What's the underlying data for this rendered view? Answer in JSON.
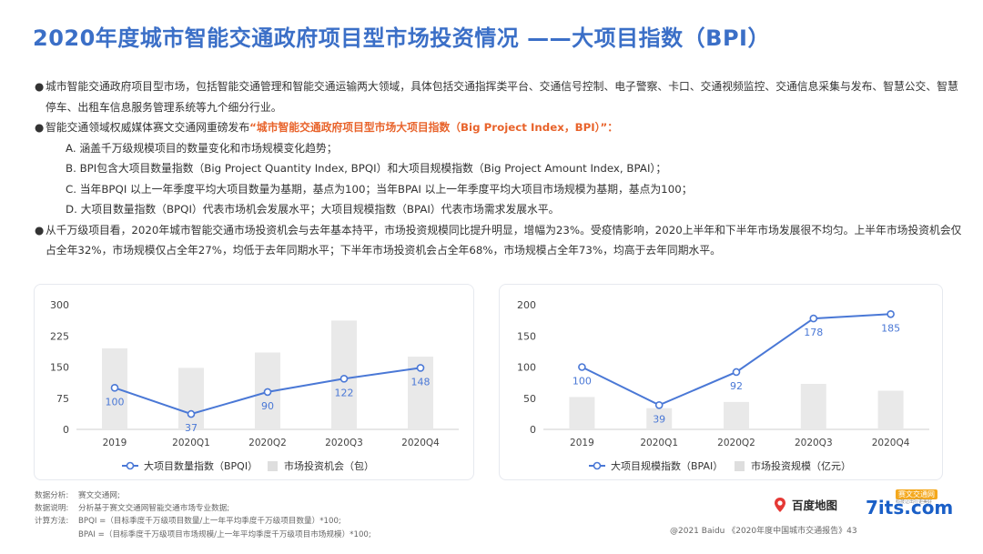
{
  "title": "2020年度城市智能交通政府项目型市场投资情况 ——大项目指数（BPI）",
  "bullets": {
    "b1": "城市智能交通政府项目型市场，包括智能交通管理和智能交通运输两大领域，具体包括交通指挥类平台、交通信号控制、电子警察、卡口、交通视频监控、交通信息采集与发布、智慧公交、智慧停车、出租车信息服务管理系统等九个细分行业。",
    "b2_prefix": "智能交通领域权威媒体赛文交通网重磅发布",
    "b2_highlight": "“城市智能交通政府项目型市场大项目指数（Big Project Index，BPI）”：",
    "subs": [
      "A.  涵盖千万级规模项目的数量变化和市场规模变化趋势；",
      "B.  BPI包含大项目数量指数（Big Project Quantity Index, BPQI）和大项目规模指数（Big Project Amount Index, BPAI）；",
      "C.  当年BPQI 以上一年季度平均大项目数量为基期，基点为100；当年BPAI 以上一年季度平均大项目市场规模为基期，基点为100；",
      "D.  大项目数量指数（BPQI）代表市场机会发展水平；大项目规模指数（BPAI）代表市场需求发展水平。"
    ],
    "b3": "从千万级项目看，2020年城市智能交通市场投资机会与去年基本持平，市场投资规模同比提升明显，增幅为23%。受疫情影响，2020上半年和下半年市场发展很不均匀。上半年市场投资机会仅占全年32%，市场规模仅占全年27%，均低于去年同期水平；下半年市场投资机会占全年68%，市场规模占全年73%，均高于去年同期水平。"
  },
  "chart_data": [
    {
      "type": "bar+line",
      "categories": [
        "2019",
        "2020Q1",
        "2020Q2",
        "2020Q3",
        "2020Q4"
      ],
      "yticks": [
        0,
        75,
        150,
        225,
        300
      ],
      "ylim": [
        0,
        300
      ],
      "bar_series": {
        "name": "市场投资机会（包）",
        "values": [
          195,
          148,
          185,
          262,
          175
        ],
        "color": "#e9e9e9"
      },
      "line_series": {
        "name": "大项目数量指数（BPQI）",
        "values": [
          100,
          37,
          90,
          122,
          148
        ],
        "color": "#4a78d6"
      },
      "legend": "bottom"
    },
    {
      "type": "bar+line",
      "categories": [
        "2019",
        "2020Q1",
        "2020Q2",
        "2020Q3",
        "2020Q4"
      ],
      "yticks": [
        0,
        50,
        100,
        150,
        200
      ],
      "ylim": [
        0,
        200
      ],
      "bar_series": {
        "name": "市场投资规模（亿元）",
        "values": [
          52,
          34,
          44,
          73,
          62
        ],
        "color": "#e9e9e9"
      },
      "line_series": {
        "name": "大项目规模指数（BPAI）",
        "values": [
          100,
          39,
          92,
          178,
          185
        ],
        "color": "#4a78d6"
      },
      "legend": "bottom"
    }
  ],
  "notes": [
    {
      "k": "数据分析:",
      "v": "赛文交通网;"
    },
    {
      "k": "数据说明:",
      "v": "分析基于赛文交通网智能交通市场专业数据;"
    },
    {
      "k": "计算方法:",
      "v": "BPQI =（目标季度千万级项目数量/上一年平均季度千万级项目数量）*100;"
    },
    {
      "k": "",
      "v": "BPAI =（目标季度千万级项目市场规模/上一年平均季度千万级项目市场规模）*100;"
    }
  ],
  "logos": {
    "baidu": "百度地图",
    "sevenits": "7its.com",
    "sevenits_badge": "赛文交通网",
    "sevenits_slogan": "科技让出行更美好"
  },
  "footer": "@2021 Baidu 《2020年度中国城市交通报告》43",
  "colors": {
    "title": "#3b6fc7",
    "highlight": "#e8632b",
    "line": "#4a78d6",
    "bar": "#e9e9e9"
  }
}
